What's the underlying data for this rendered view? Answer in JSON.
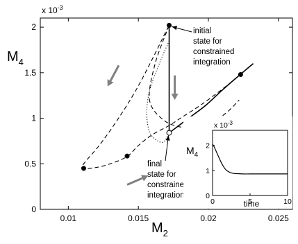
{
  "chart_data": {
    "type": "line",
    "title": "",
    "xlabel": {
      "base": "M",
      "sub": "2"
    },
    "ylabel": {
      "base": "M",
      "sub": "4"
    },
    "y_exponent_label": "x 10",
    "y_exponent_power": "-3",
    "xlim": [
      0.008,
      0.026
    ],
    "ylim": [
      0,
      2.1
    ],
    "x_ticks": [
      0.01,
      0.015,
      0.02,
      0.025
    ],
    "x_tick_labels": [
      "0.01",
      "0.015",
      "0.02",
      "0.025"
    ],
    "y_ticks": [
      0,
      0.5,
      1,
      1.5,
      2
    ],
    "y_tick_labels": [
      "0",
      "0.5",
      "1",
      "1.5",
      "2"
    ],
    "grid": false,
    "series": [
      {
        "style": "dashed",
        "x": [
          0.0232,
          0.0222,
          0.021,
          0.0195,
          0.018,
          0.0172,
          0.016,
          0.015,
          0.0142,
          0.013,
          0.012,
          0.011,
          0.0112,
          0.0122,
          0.0135,
          0.0148,
          0.016,
          0.0168,
          0.0172
        ],
        "y": [
          1.6,
          1.47,
          1.32,
          1.15,
          1.0,
          0.92,
          0.82,
          0.7,
          0.58,
          0.5,
          0.46,
          0.45,
          0.52,
          0.7,
          0.98,
          1.3,
          1.65,
          1.9,
          2.02
        ]
      },
      {
        "style": "dashed",
        "x": [
          0.0172,
          0.0162,
          0.0158,
          0.0168,
          0.0182,
          0.0198,
          0.0212,
          0.0222
        ],
        "y": [
          2.02,
          1.6,
          1.2,
          0.98,
          0.9,
          0.92,
          1.05,
          1.2
        ]
      },
      {
        "style": "dotted",
        "x": [
          0.0172,
          0.0165,
          0.0158,
          0.0156,
          0.0158,
          0.0163,
          0.0168,
          0.0172
        ],
        "y": [
          1.85,
          1.6,
          1.3,
          1.05,
          0.85,
          0.76,
          0.74,
          0.84
        ]
      },
      {
        "style": "solid",
        "x": [
          0.0172,
          0.0172
        ],
        "y": [
          2.02,
          0.84
        ]
      },
      {
        "style": "solid",
        "x": [
          0.0172,
          0.0185,
          0.0198,
          0.021,
          0.0222,
          0.0232
        ],
        "y": [
          0.84,
          0.99,
          1.14,
          1.31,
          1.47,
          1.6
        ]
      }
    ],
    "markers": [
      {
        "x": 0.0172,
        "y": 2.02,
        "fill": "filled"
      },
      {
        "x": 0.0172,
        "y": 0.84,
        "fill": "open"
      },
      {
        "x": 0.0111,
        "y": 0.45,
        "fill": "filled"
      },
      {
        "x": 0.0142,
        "y": 0.585,
        "fill": "filled"
      },
      {
        "x": 0.0223,
        "y": 1.48,
        "fill": "filled"
      }
    ],
    "arrows": [
      {
        "x1": 0.0136,
        "y1": 1.58,
        "x2": 0.0128,
        "y2": 1.35
      },
      {
        "x1": 0.0176,
        "y1": 1.47,
        "x2": 0.0176,
        "y2": 1.2
      },
      {
        "x1": 0.0142,
        "y1": 0.27,
        "x2": 0.0157,
        "y2": 0.37
      }
    ],
    "annotations": [
      {
        "lines": [
          "initial",
          "state for",
          "constrained",
          "integration"
        ]
      },
      {
        "lines": [
          "final",
          "state for",
          "constrained",
          "integration"
        ]
      }
    ],
    "inset": {
      "type": "line",
      "ylabel": {
        "base": "M",
        "sub": "4"
      },
      "xlabel": "time",
      "y_exponent_label": "x 10",
      "y_exponent_power": "-3",
      "xlim": [
        0,
        10
      ],
      "ylim": [
        0,
        2.6
      ],
      "x_ticks": [
        0,
        5,
        10
      ],
      "x_tick_labels": [
        "0",
        "5",
        "10"
      ],
      "y_ticks": [
        0,
        1,
        2
      ],
      "y_tick_labels": [
        "0",
        "1",
        "2"
      ],
      "series": [
        {
          "style": "solid",
          "x": [
            0,
            0.2,
            0.5,
            0.8,
            1.1,
            1.4,
            1.7,
            2.0,
            2.4,
            2.8,
            3.3,
            4,
            5,
            6,
            7,
            8,
            9,
            10
          ],
          "y": [
            2.05,
            1.95,
            1.75,
            1.55,
            1.35,
            1.18,
            1.05,
            0.97,
            0.91,
            0.88,
            0.87,
            0.86,
            0.86,
            0.86,
            0.86,
            0.86,
            0.86,
            0.86
          ]
        }
      ]
    }
  }
}
